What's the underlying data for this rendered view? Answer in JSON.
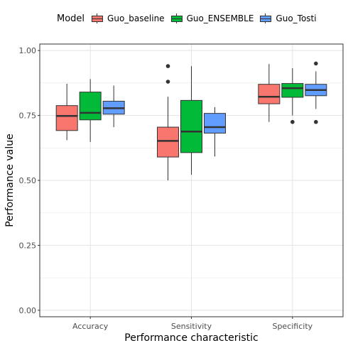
{
  "legend": {
    "title": "Model",
    "items": [
      {
        "label": "Guo_baseline",
        "color": "#F8766D"
      },
      {
        "label": "Guo_ENSEMBLE",
        "color": "#00BA38"
      },
      {
        "label": "Guo_Tosti",
        "color": "#619CFF"
      }
    ]
  },
  "chart_data": {
    "type": "boxplot",
    "title": "",
    "xlabel": "Performance characteristic",
    "ylabel": "Performance value",
    "ylim": [
      -0.025,
      1.025
    ],
    "yticks": [
      "0.00",
      "0.25",
      "0.50",
      "0.75",
      "1.00"
    ],
    "grid": true,
    "legend_position": "top",
    "categories": [
      "Accuracy",
      "Sensitivity",
      "Specificity"
    ],
    "series": [
      {
        "name": "Guo_baseline",
        "color": "#F8766D",
        "boxes": [
          {
            "whisker_low": 0.655,
            "q1": 0.692,
            "median": 0.748,
            "q3": 0.788,
            "whisker_high": 0.872,
            "outliers": []
          },
          {
            "whisker_low": 0.5,
            "q1": 0.59,
            "median": 0.652,
            "q3": 0.705,
            "whisker_high": 0.822,
            "outliers": [
              0.88,
              0.94
            ]
          },
          {
            "whisker_low": 0.725,
            "q1": 0.795,
            "median": 0.822,
            "q3": 0.87,
            "whisker_high": 0.948,
            "outliers": []
          }
        ]
      },
      {
        "name": "Guo_ENSEMBLE",
        "color": "#00BA38",
        "boxes": [
          {
            "whisker_low": 0.648,
            "q1": 0.733,
            "median": 0.76,
            "q3": 0.84,
            "whisker_high": 0.89,
            "outliers": []
          },
          {
            "whisker_low": 0.522,
            "q1": 0.607,
            "median": 0.688,
            "q3": 0.808,
            "whisker_high": 0.94,
            "outliers": []
          },
          {
            "whisker_low": 0.75,
            "q1": 0.82,
            "median": 0.855,
            "q3": 0.873,
            "whisker_high": 0.932,
            "outliers": [
              0.725
            ]
          }
        ]
      },
      {
        "name": "Guo_Tosti",
        "color": "#619CFF",
        "boxes": [
          {
            "whisker_low": 0.705,
            "q1": 0.755,
            "median": 0.778,
            "q3": 0.805,
            "whisker_high": 0.865,
            "outliers": []
          },
          {
            "whisker_low": 0.592,
            "q1": 0.682,
            "median": 0.705,
            "q3": 0.758,
            "whisker_high": 0.782,
            "outliers": []
          },
          {
            "whisker_low": 0.775,
            "q1": 0.826,
            "median": 0.848,
            "q3": 0.87,
            "whisker_high": 0.92,
            "outliers": [
              0.725,
              0.95
            ]
          }
        ]
      }
    ]
  }
}
